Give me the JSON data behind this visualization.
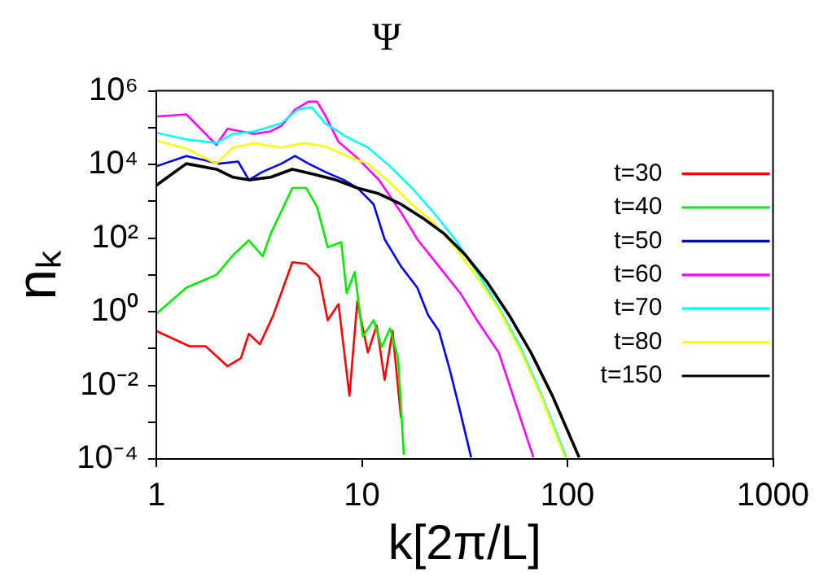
{
  "chart_data": {
    "type": "line",
    "title": "Ψ",
    "xlabel": "k[2π/L]",
    "ylabel": "nₖ",
    "log": "xy",
    "grid": false,
    "legend": "right",
    "marker": "none",
    "line_style": "solid",
    "xlim": [
      1,
      1000
    ],
    "xticks": [
      1,
      10,
      100,
      1000
    ],
    "ylim": [
      0.0001,
      1000000
    ],
    "yticks": [
      {
        "value": 0.0001,
        "label": "10⁻⁴"
      },
      {
        "value": 0.001,
        "label": null
      },
      {
        "value": 0.01,
        "label": "10⁻²"
      },
      {
        "value": 0.1,
        "label": null
      },
      {
        "value": 1,
        "label": "10⁰"
      },
      {
        "value": 10,
        "label": null
      },
      {
        "value": 100,
        "label": "10²"
      },
      {
        "value": 1000,
        "label": null
      },
      {
        "value": 10000,
        "label": "10⁴"
      },
      {
        "value": 100000,
        "label": null
      },
      {
        "value": 1000000,
        "label": "10⁶"
      }
    ],
    "series": [
      {
        "name": "t=30",
        "color": "#ff0000",
        "x": [
          1,
          1.45,
          1.74,
          2.22,
          2.58,
          2.82,
          3.19,
          3.71,
          4.59,
          5.35,
          6.2,
          6.82,
          7.7,
          8.7,
          9.5,
          10.7,
          11.8,
          12.9,
          14.1,
          15.5
        ],
        "values": [
          0.3,
          0.115,
          0.115,
          0.033,
          0.055,
          0.25,
          0.13,
          0.81,
          22,
          20,
          8.7,
          0.59,
          1.6,
          0.0052,
          1.9,
          0.078,
          0.42,
          0.014,
          0.3,
          0.0013
        ]
      },
      {
        "name": "t=40",
        "color": "#00ee00",
        "x": [
          1,
          1.4,
          1.96,
          2.36,
          2.82,
          3.29,
          3.6,
          4.59,
          5.35,
          6.05,
          6.82,
          7.94,
          8.43,
          9.23,
          10.1,
          11.4,
          12.5,
          13.7,
          15,
          16
        ],
        "values": [
          0.87,
          4.5,
          10,
          34,
          87,
          32,
          130,
          2300,
          2300,
          710,
          56,
          78,
          3.2,
          12,
          0.21,
          0.59,
          0.11,
          0.35,
          0.055,
          0.00013
        ]
      },
      {
        "name": "t=50",
        "color": "#0000ff",
        "x": [
          1,
          1.4,
          2.02,
          2.5,
          2.82,
          3.29,
          4.06,
          4.73,
          5.5,
          6.62,
          8.16,
          9.5,
          11.4,
          12.9,
          15.5,
          18.6,
          21,
          23.7,
          26.7,
          30.1,
          34
        ],
        "values": [
          8900,
          17000,
          10500,
          12000,
          3800,
          6300,
          10500,
          17000,
          10500,
          6300,
          3800,
          2300,
          830,
          93,
          17,
          4.5,
          0.81,
          0.3,
          0.028,
          0.0019,
          0.00011
        ]
      },
      {
        "name": "t=60",
        "color": "#ff00ff",
        "x": [
          1,
          1.4,
          1.96,
          2.22,
          2.58,
          3,
          3.6,
          4.06,
          4.73,
          5.5,
          6.05,
          6.62,
          7.7,
          9.5,
          12.1,
          15.5,
          18.6,
          23.7,
          30.1,
          36.3,
          46.3,
          55.5,
          68.3
        ],
        "values": [
          200000,
          230000,
          34000,
          93000,
          79000,
          68000,
          79000,
          112000,
          310000,
          510000,
          510000,
          220000,
          41000,
          15000,
          3800,
          500,
          93,
          17,
          3.2,
          0.59,
          0.078,
          0.0037,
          0.00011
        ]
      },
      {
        "name": "t=70",
        "color": "#00ffff",
        "x": [
          1,
          1.4,
          1.96,
          2.36,
          3,
          4.06,
          4.88,
          5.69,
          6.62,
          8.43,
          10.7,
          13.7,
          17.5,
          22.3,
          28.4,
          36.3,
          46.3,
          58.9,
          75,
          98.5
        ],
        "values": [
          72000,
          48000,
          38000,
          68000,
          79000,
          132000,
          310000,
          360000,
          132000,
          56000,
          29000,
          8900,
          2300,
          500,
          93,
          12,
          1.3,
          0.11,
          0.0052,
          0.00011
        ]
      },
      {
        "name": "t=80",
        "color": "#ffff00",
        "x": [
          1,
          1.4,
          1.96,
          2.36,
          3,
          4.06,
          5.2,
          6.62,
          8.43,
          10.7,
          13.7,
          17.5,
          22.3,
          28.4,
          36.3,
          46.3,
          58.9,
          75,
          97
        ],
        "values": [
          44000,
          27000,
          10500,
          29000,
          38000,
          29000,
          38000,
          31000,
          17000,
          10500,
          3200,
          830,
          260,
          56,
          8.7,
          1.15,
          0.09,
          0.0045,
          0.00011
        ]
      },
      {
        "name": "t=150",
        "color": "#000000",
        "x": [
          1,
          1.4,
          1.96,
          2.36,
          2.82,
          3.6,
          4.59,
          5.85,
          7.47,
          9.5,
          12.1,
          15.5,
          19.7,
          25.2,
          32,
          40.8,
          52,
          66.4,
          84.5,
          114
        ],
        "values": [
          2700,
          10500,
          7400,
          4500,
          3800,
          4500,
          7400,
          5400,
          3800,
          2300,
          1600,
          830,
          355,
          130,
          34,
          6.2,
          0.81,
          0.078,
          0.0052,
          0.00011
        ]
      }
    ]
  }
}
